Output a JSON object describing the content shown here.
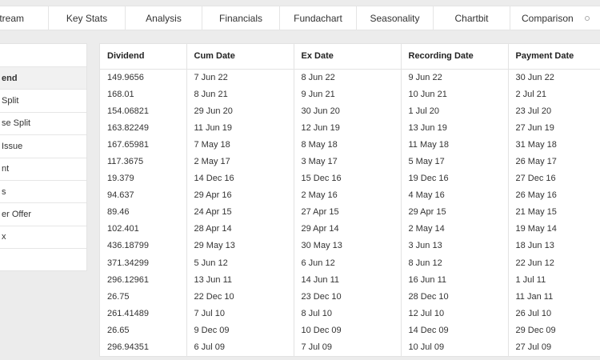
{
  "tabs": [
    "Stream",
    "Key Stats",
    "Analysis",
    "Financials",
    "Fundachart",
    "Seasonality",
    "Chartbit",
    "Comparison"
  ],
  "sidebar": {
    "items": [
      "",
      "end",
      " Split",
      "se Split",
      " Issue",
      "nt",
      "s",
      "er Offer",
      "x",
      ""
    ]
  },
  "table": {
    "headers": [
      "Dividend",
      "Cum Date",
      "Ex Date",
      "Recording Date",
      "Payment Date"
    ],
    "rows": [
      [
        "149.9656",
        "7 Jun 22",
        "8 Jun 22",
        "9 Jun 22",
        "30 Jun 22"
      ],
      [
        "168.01",
        "8 Jun 21",
        "9 Jun 21",
        "10 Jun 21",
        "2 Jul 21"
      ],
      [
        "154.06821",
        "29 Jun 20",
        "30 Jun 20",
        "1 Jul 20",
        "23 Jul 20"
      ],
      [
        "163.82249",
        "11 Jun 19",
        "12 Jun 19",
        "13 Jun 19",
        "27 Jun 19"
      ],
      [
        "167.65981",
        "7 May 18",
        "8 May 18",
        "11 May 18",
        "31 May 18"
      ],
      [
        "117.3675",
        "2 May 17",
        "3 May 17",
        "5 May 17",
        "26 May 17"
      ],
      [
        "19.379",
        "14 Dec 16",
        "15 Dec 16",
        "19 Dec 16",
        "27 Dec 16"
      ],
      [
        "94.637",
        "29 Apr 16",
        "2 May 16",
        "4 May 16",
        "26 May 16"
      ],
      [
        "89.46",
        "24 Apr 15",
        "27 Apr 15",
        "29 Apr 15",
        "21 May 15"
      ],
      [
        "102.401",
        "28 Apr 14",
        "29 Apr 14",
        "2 May 14",
        "19 May 14"
      ],
      [
        "436.18799",
        "29 May 13",
        "30 May 13",
        "3 Jun 13",
        "18 Jun 13"
      ],
      [
        "371.34299",
        "5 Jun 12",
        "6 Jun 12",
        "8 Jun 12",
        "22 Jun 12"
      ],
      [
        "296.12961",
        "13 Jun 11",
        "14 Jun 11",
        "16 Jun 11",
        "1 Jul 11"
      ],
      [
        "26.75",
        "22 Dec 10",
        "23 Dec 10",
        "28 Dec 10",
        "11 Jan 11"
      ],
      [
        "261.41489",
        "7 Jul 10",
        "8 Jul 10",
        "12 Jul 10",
        "26 Jul 10"
      ],
      [
        "26.65",
        "9 Dec 09",
        "10 Dec 09",
        "14 Dec 09",
        "29 Dec 09"
      ],
      [
        "296.94351",
        "6 Jul 09",
        "7 Jul 09",
        "10 Jul 09",
        "27 Jul 09"
      ]
    ]
  }
}
